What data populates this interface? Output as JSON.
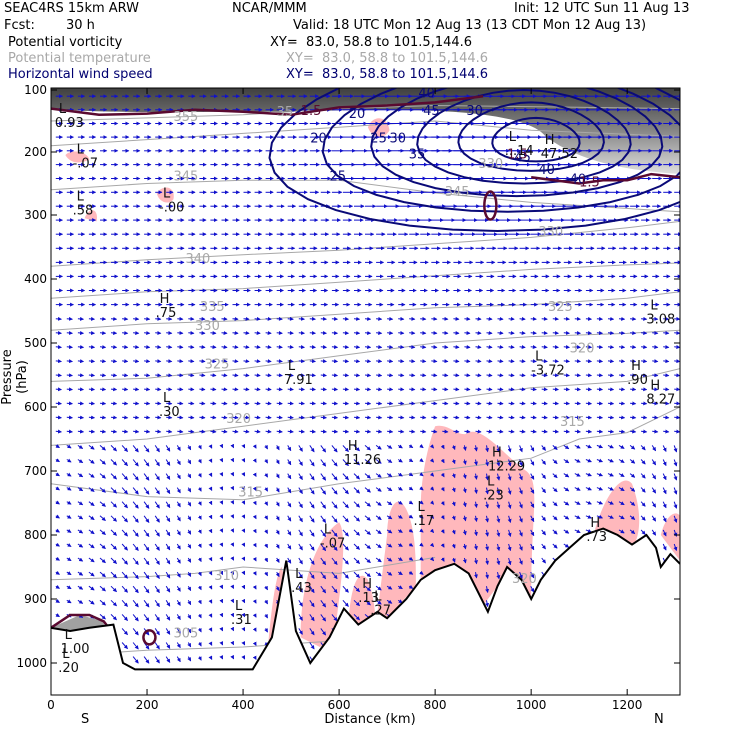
{
  "header": {
    "model": "SEAC4RS 15km ARW",
    "center": "NCAR/MMM",
    "init": "Init: 12 UTC Sun 11 Aug 13",
    "fcst_label": "Fcst:",
    "fcst_value": "30 h",
    "valid": "Valid: 18 UTC Mon 12 Aug 13 (13 CDT Mon 12 Aug 13)",
    "fields": [
      {
        "name": "Potential vorticity",
        "xy": "XY=  83.0, 58.8 to 101.5,144.6",
        "color": "#000000"
      },
      {
        "name": "Potential temperature",
        "xy": "XY=  83.0, 58.8 to 101.5,144.6",
        "color": "#a8a8a8"
      },
      {
        "name": "Horizontal wind speed",
        "xy": "XY=  83.0, 58.8 to 101.5,144.6",
        "color": "#000070"
      }
    ]
  },
  "chart_data": {
    "type": "cross-section",
    "ylabel": "Pressure (hPa)",
    "xlabel": "Distance (km)",
    "x_ticks": [
      0,
      200,
      400,
      600,
      800,
      1000,
      1200
    ],
    "y_ticks": [
      100,
      200,
      300,
      400,
      500,
      600,
      700,
      800,
      900,
      1000
    ],
    "xlim": [
      0,
      1310
    ],
    "ylim": [
      1000,
      100
    ],
    "y_scale": "log-pressure",
    "end_labels": {
      "left": "S",
      "right": "N"
    },
    "colors": {
      "potential_vorticity": "#5a0a30",
      "potential_temperature": "#a8a8a8",
      "wind_speed": "#0a0a78",
      "wind_vectors": "#1010cc",
      "shading_pink": "#ffb8bc",
      "shading_gray": "#606060"
    },
    "terrain_surface_hpa": [
      [
        0,
        945
      ],
      [
        40,
        950
      ],
      [
        80,
        945
      ],
      [
        130,
        940
      ],
      [
        150,
        1000
      ],
      [
        175,
        1010
      ],
      [
        200,
        1010
      ],
      [
        240,
        1010
      ],
      [
        300,
        1010
      ],
      [
        360,
        1010
      ],
      [
        420,
        1010
      ],
      [
        460,
        960
      ],
      [
        490,
        840
      ],
      [
        510,
        950
      ],
      [
        540,
        1000
      ],
      [
        580,
        960
      ],
      [
        610,
        915
      ],
      [
        640,
        940
      ],
      [
        680,
        920
      ],
      [
        700,
        930
      ],
      [
        740,
        900
      ],
      [
        770,
        870
      ],
      [
        800,
        855
      ],
      [
        840,
        845
      ],
      [
        870,
        860
      ],
      [
        890,
        890
      ],
      [
        910,
        920
      ],
      [
        930,
        880
      ],
      [
        950,
        850
      ],
      [
        980,
        870
      ],
      [
        1000,
        900
      ],
      [
        1020,
        870
      ],
      [
        1050,
        840
      ],
      [
        1080,
        820
      ],
      [
        1110,
        800
      ],
      [
        1150,
        790
      ],
      [
        1180,
        800
      ],
      [
        1210,
        815
      ],
      [
        1240,
        800
      ],
      [
        1260,
        820
      ],
      [
        1270,
        850
      ],
      [
        1290,
        830
      ],
      [
        1310,
        845
      ]
    ],
    "wind_speed_contours": [
      {
        "label": "20",
        "value": 20
      },
      {
        "label": "25",
        "value": 25
      },
      {
        "label": "30",
        "value": 30
      },
      {
        "label": "35",
        "value": 35
      },
      {
        "label": "40",
        "value": 40
      },
      {
        "label": "45",
        "value": 45
      }
    ],
    "theta_labels": [
      {
        "label": "305",
        "x": 255,
        "p": 960
      },
      {
        "label": "310",
        "x": 340,
        "p": 870
      },
      {
        "label": "315",
        "x": 390,
        "p": 740
      },
      {
        "label": "315",
        "x": 1060,
        "p": 630
      },
      {
        "label": "320",
        "x": 365,
        "p": 625
      },
      {
        "label": "320",
        "x": 1080,
        "p": 515
      },
      {
        "label": "325",
        "x": 320,
        "p": 540
      },
      {
        "label": "325",
        "x": 1035,
        "p": 450
      },
      {
        "label": "330",
        "x": 300,
        "p": 480
      },
      {
        "label": "330",
        "x": 1015,
        "p": 333
      },
      {
        "label": "335",
        "x": 310,
        "p": 450
      },
      {
        "label": "340",
        "x": 280,
        "p": 375
      },
      {
        "label": "345",
        "x": 255,
        "p": 245
      },
      {
        "label": "345",
        "x": 820,
        "p": 270
      },
      {
        "label": "330",
        "x": 890,
        "p": 225
      },
      {
        "label": "355",
        "x": 255,
        "p": 150
      },
      {
        "label": "35",
        "x": 470,
        "p": 142
      },
      {
        "label": "320",
        "x": 960,
        "p": 875
      }
    ],
    "wind_labels": [
      {
        "label": "20",
        "x": 540,
        "p": 185
      },
      {
        "label": "20",
        "x": 620,
        "p": 145
      },
      {
        "label": "25",
        "x": 580,
        "p": 245
      },
      {
        "label": "25",
        "x": 665,
        "p": 185
      },
      {
        "label": "30",
        "x": 705,
        "p": 185
      },
      {
        "label": "35",
        "x": 745,
        "p": 210
      },
      {
        "label": "30",
        "x": 865,
        "p": 140
      },
      {
        "label": "40",
        "x": 765,
        "p": 112
      },
      {
        "label": "40",
        "x": 1015,
        "p": 235
      },
      {
        "label": "40",
        "x": 1080,
        "p": 250
      },
      {
        "label": "45",
        "x": 775,
        "p": 140
      },
      {
        "label": "45",
        "x": 965,
        "p": 215
      }
    ],
    "pv_labels": [
      {
        "label": "1.5",
        "x": 520,
        "p": 140
      },
      {
        "label": "1.5",
        "x": 1100,
        "p": 255
      },
      {
        "label": "1.5",
        "x": 950,
        "p": 210
      }
    ],
    "extrema": [
      {
        "type": "L",
        "value": "0.93",
        "x": 8,
        "p": 150
      },
      {
        "type": "L",
        "value": "-.07",
        "x": 45,
        "p": 215
      },
      {
        "type": "L",
        "value": ".58",
        "x": 45,
        "p": 290
      },
      {
        "type": "L",
        "value": "-.00",
        "x": 225,
        "p": 285
      },
      {
        "type": "H",
        "value": ".75",
        "x": 218,
        "p": 450
      },
      {
        "type": "L",
        "value": "7.91",
        "x": 485,
        "p": 555
      },
      {
        "type": "L",
        "value": ".30",
        "x": 225,
        "p": 605
      },
      {
        "type": "H",
        "value": "11.26",
        "x": 610,
        "p": 680
      },
      {
        "type": "H",
        "value": "12.29",
        "x": 910,
        "p": 690
      },
      {
        "type": "L",
        "value": ".23",
        "x": 900,
        "p": 735
      },
      {
        "type": "L",
        "value": ".17",
        "x": 755,
        "p": 775
      },
      {
        "type": "L",
        "value": "-.07",
        "x": 560,
        "p": 810
      },
      {
        "type": "H",
        "value": ".73",
        "x": 1115,
        "p": 800
      },
      {
        "type": "L",
        "value": ".43",
        "x": 500,
        "p": 880
      },
      {
        "type": "H",
        "value": ".13",
        "x": 640,
        "p": 895
      },
      {
        "type": "L",
        "value": ".27",
        "x": 665,
        "p": 915
      },
      {
        "type": "L",
        "value": ".31",
        "x": 375,
        "p": 930
      },
      {
        "type": "L",
        "value": "1.00",
        "x": 20,
        "p": 975
      },
      {
        "type": "L",
        "value": ".20",
        "x": 15,
        "p": 1005
      },
      {
        "type": "L",
        "value": "3.08",
        "x": 1240,
        "p": 460
      },
      {
        "type": "L",
        "value": "-3.72",
        "x": 1000,
        "p": 540
      },
      {
        "type": "H",
        "value": ".90",
        "x": 1200,
        "p": 555
      },
      {
        "type": "H",
        "value": "8.27",
        "x": 1240,
        "p": 585
      },
      {
        "type": "L",
        "value": "...14",
        "x": 945,
        "p": 195
      },
      {
        "type": "H",
        "value": "47.52",
        "x": 1020,
        "p": 200
      }
    ]
  }
}
